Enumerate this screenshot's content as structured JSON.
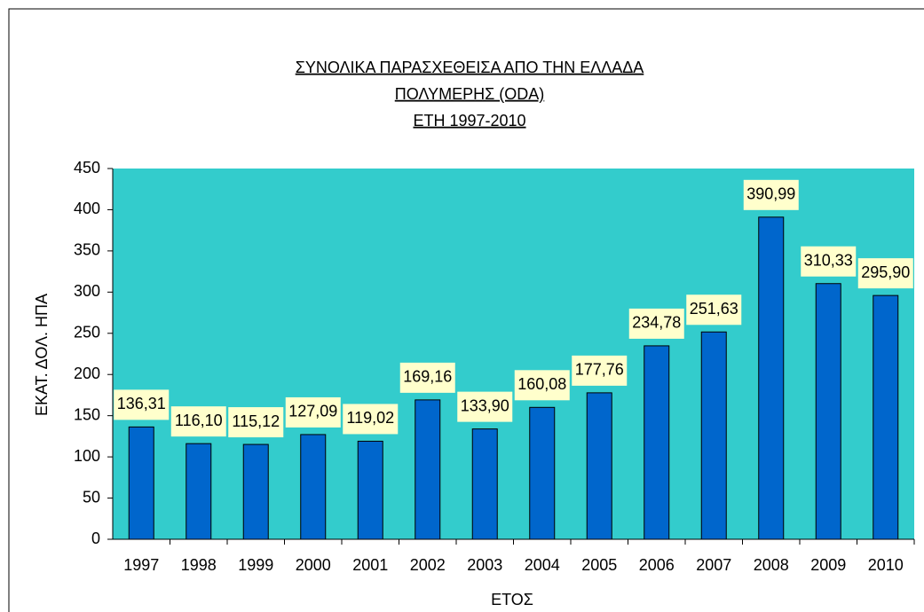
{
  "chart_data": {
    "type": "bar",
    "title": [
      "ΣΥΝΟΛΙΚΑ ΠΑΡΑΣΧΕΘΕΙΣΑ ΑΠΟ ΤΗΝ ΕΛΛΑΔΑ",
      "ΠΟΛΥΜΕΡΗΣ (ODA)",
      "ΕΤΗ 1997-2010"
    ],
    "x_label": "ΕΤΟΣ",
    "y_label": "ΕΚΑΤ. ΔΟΛ. ΗΠΑ",
    "categories": [
      "1997",
      "1998",
      "1999",
      "2000",
      "2001",
      "2002",
      "2003",
      "2004",
      "2005",
      "2006",
      "2007",
      "2008",
      "2009",
      "2010"
    ],
    "values": [
      136.31,
      116.1,
      115.12,
      127.09,
      119.02,
      169.16,
      133.9,
      160.08,
      177.76,
      234.78,
      251.63,
      390.99,
      310.33,
      295.9
    ],
    "value_labels": [
      "136,31",
      "116,10",
      "115,12",
      "127,09",
      "119,02",
      "169,16",
      "133,90",
      "160,08",
      "177,76",
      "234,78",
      "251,63",
      "390,99",
      "310,33",
      "295,90"
    ],
    "color": "#0066cc",
    "plot_background": "#33cccc",
    "ylim": [
      0,
      450
    ],
    "yticks": [
      0,
      50,
      100,
      150,
      200,
      250,
      300,
      350,
      400,
      450
    ]
  }
}
